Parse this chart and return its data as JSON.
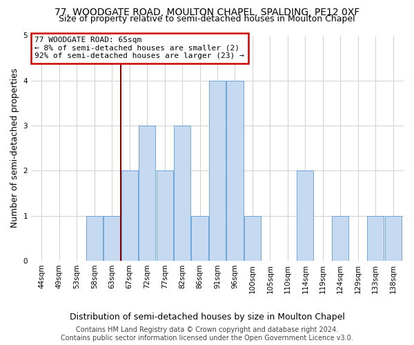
{
  "title1": "77, WOODGATE ROAD, MOULTON CHAPEL, SPALDING, PE12 0XF",
  "title2": "Size of property relative to semi-detached houses in Moulton Chapel",
  "xlabel": "Distribution of semi-detached houses by size in Moulton Chapel",
  "ylabel": "Number of semi-detached properties",
  "annotation_title": "77 WOODGATE ROAD: 65sqm",
  "annotation_line2": "← 8% of semi-detached houses are smaller (2)",
  "annotation_line3": "92% of semi-detached houses are larger (23) →",
  "footer1": "Contains HM Land Registry data © Crown copyright and database right 2024.",
  "footer2": "Contains public sector information licensed under the Open Government Licence v3.0.",
  "bins": [
    44,
    49,
    53,
    58,
    63,
    67,
    72,
    77,
    82,
    86,
    91,
    96,
    100,
    105,
    110,
    114,
    119,
    124,
    129,
    133,
    138
  ],
  "bar_heights": [
    0,
    0,
    0,
    1,
    1,
    2,
    3,
    2,
    3,
    1,
    4,
    4,
    1,
    0,
    0,
    2,
    0,
    1,
    0,
    1,
    1
  ],
  "bar_color": "#c5d9f1",
  "bar_edge_color": "#5b9bd5",
  "vline_color": "#8b0000",
  "annotation_box_color": "#ffffff",
  "annotation_box_edge": "#cc0000",
  "ylim": [
    0,
    5
  ],
  "yticks": [
    0,
    1,
    2,
    3,
    4,
    5
  ],
  "background_color": "#ffffff",
  "grid_color": "#d0d0d0",
  "title_fontsize": 10,
  "subtitle_fontsize": 9,
  "axis_label_fontsize": 9,
  "tick_fontsize": 7.5,
  "annotation_fontsize": 8,
  "footer_fontsize": 7
}
